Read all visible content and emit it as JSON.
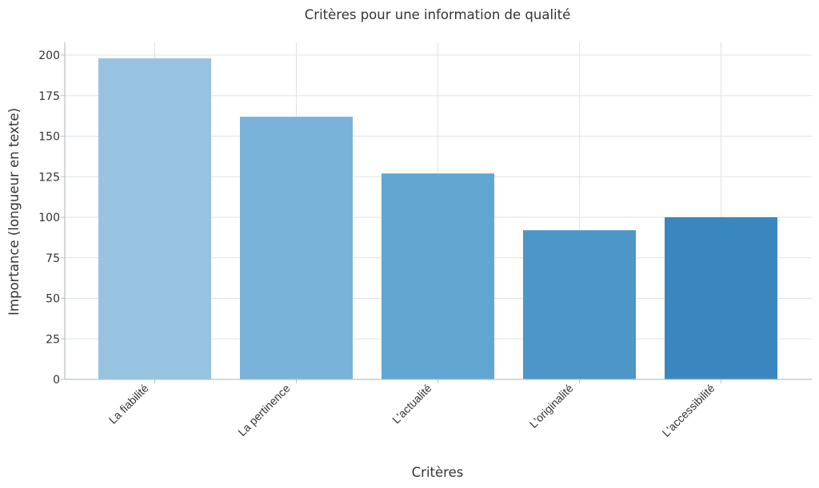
{
  "chart_data": {
    "type": "bar",
    "title": "Critères pour une information de qualité",
    "xlabel": "Critères",
    "ylabel": "Importance (longueur en texte)",
    "categories": [
      "La fiabilité",
      "La pertinence",
      "L'actualité",
      "L'originalité",
      "L'accessibilité"
    ],
    "values": [
      198,
      162,
      127,
      92,
      100
    ],
    "colors": [
      "#97c3e0",
      "#7ab3d9",
      "#61a6d0",
      "#4c97c8",
      "#3a87bf"
    ],
    "ylim": [
      0,
      210
    ],
    "yticks": [
      0,
      25,
      50,
      75,
      100,
      125,
      150,
      175,
      200
    ],
    "grid": true,
    "legend": "none"
  }
}
